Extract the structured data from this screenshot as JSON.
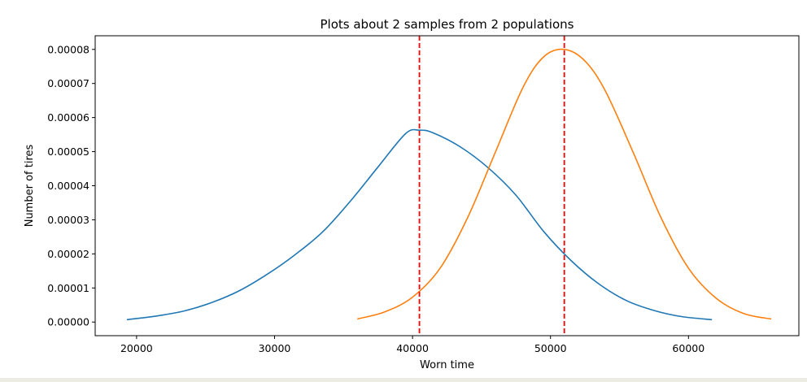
{
  "chart_data": {
    "type": "line",
    "title": "Plots about 2 samples from 2 populations",
    "xlabel": "Worn time",
    "ylabel": "Number of tires",
    "xlim": [
      17000,
      68000
    ],
    "ylim": [
      -4e-06,
      8.4e-05
    ],
    "xticks": [
      20000,
      30000,
      40000,
      50000,
      60000
    ],
    "xtick_labels": [
      "20000",
      "30000",
      "40000",
      "50000",
      "60000"
    ],
    "yticks": [
      0,
      1e-05,
      2e-05,
      3e-05,
      4e-05,
      5e-05,
      6e-05,
      7e-05,
      8e-05
    ],
    "ytick_labels": [
      "0.00000",
      "0.00001",
      "0.00002",
      "0.00003",
      "0.00004",
      "0.00005",
      "0.00006",
      "0.00007",
      "0.00008"
    ],
    "grid": false,
    "series": [
      {
        "color": "#1f77b4",
        "x": [
          19300,
          21500,
          23500,
          25500,
          27500,
          29500,
          31500,
          33500,
          35500,
          37500,
          39500,
          40500,
          41500,
          43500,
          45500,
          47500,
          49500,
          51500,
          53500,
          55500,
          57500,
          59500,
          61700
        ],
        "y": [
          7e-07,
          1.8e-06,
          3.3e-06,
          5.8e-06,
          9.3e-06,
          1.41e-05,
          1.98e-05,
          2.65e-05,
          3.55e-05,
          4.55e-05,
          5.53e-05,
          5.63e-05,
          5.55e-05,
          5.13e-05,
          4.52e-05,
          3.72e-05,
          2.66e-05,
          1.8e-05,
          1.12e-05,
          6.3e-06,
          3.4e-06,
          1.6e-06,
          7e-07
        ]
      },
      {
        "color": "#ff7f0e",
        "x": [
          36000,
          38000,
          40000,
          42000,
          44000,
          46000,
          48000,
          49500,
          51000,
          52500,
          54000,
          56000,
          58000,
          60000,
          62000,
          64000,
          66000
        ],
        "y": [
          9e-07,
          3e-06,
          7.3e-06,
          1.58e-05,
          3.07e-05,
          4.98e-05,
          6.88e-05,
          7.78e-05,
          8e-05,
          7.66e-05,
          6.76e-05,
          4.97e-05,
          3.07e-05,
          1.58e-05,
          7e-06,
          2.5e-06,
          9e-07
        ]
      }
    ],
    "vlines": [
      {
        "x": 40500,
        "color": "#ff0000",
        "style": "dashed"
      },
      {
        "x": 51000,
        "color": "#ff0000",
        "style": "dashed"
      }
    ]
  }
}
